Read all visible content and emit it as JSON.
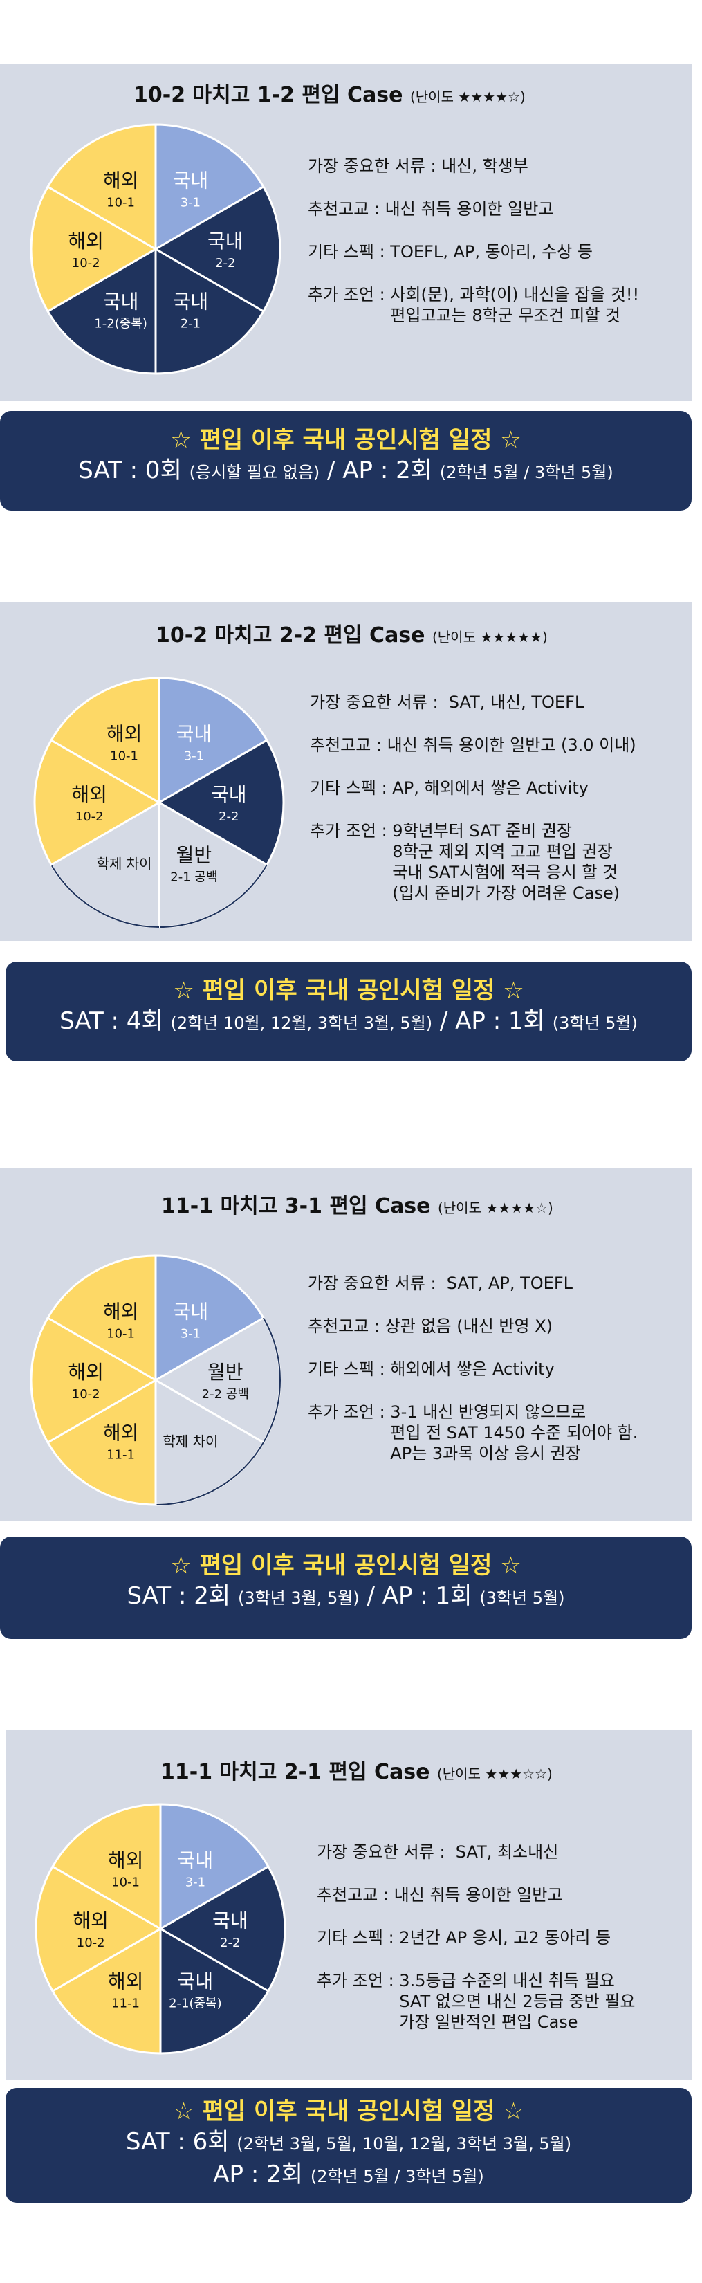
{
  "colors": {
    "panel": "#d5dae5",
    "banner": "#1f335d",
    "banner_title": "#ffe14d",
    "domestic_light": "#8fa8dc",
    "domestic_dark": "#1f335d",
    "overseas": "#fdd866",
    "blank": "#d5dae5"
  },
  "banner_title": "☆ 편입 이후 국내 공인시험 일정 ☆",
  "label_sep": " : ",
  "cases": [
    {
      "title": "10-2 마치고 1-2 편입 Case",
      "difficulty": "(난이도 ★★★★☆)",
      "pie": [
        {
          "title": "국내",
          "sub": "3-1",
          "kind": "domestic_light"
        },
        {
          "title": "국내",
          "sub": "2-2",
          "kind": "domestic_dark"
        },
        {
          "title": "국내",
          "sub": "2-1",
          "kind": "domestic_dark"
        },
        {
          "title": "국내",
          "sub": "1-2(중복)",
          "kind": "domestic_dark"
        },
        {
          "title": "해외",
          "sub": "10-2",
          "kind": "overseas"
        },
        {
          "title": "해외",
          "sub": "10-1",
          "kind": "overseas"
        }
      ],
      "info": [
        {
          "label": "가장 중요한 서류",
          "lines": [
            "내신, 학생부"
          ]
        },
        {
          "label": "추천고교",
          "lines": [
            "내신 취득 용이한 일반고"
          ]
        },
        {
          "label": "기타 스펙",
          "lines": [
            "TOEFL, AP, 동아리, 수상 등"
          ]
        },
        {
          "label": "추가 조언",
          "lines": [
            "사회(문), 과학(이) 내신을 잡을 것!!",
            "편입고교는 8학군 무조건 피할 것"
          ]
        }
      ],
      "banner_lines": [
        [
          {
            "t": "SAT : 0회 ",
            "cls": "big"
          },
          {
            "t": "(응시할 필요 없음)",
            "cls": "sm"
          },
          {
            "t": " / AP : 2회 ",
            "cls": "big"
          },
          {
            "t": "(2학년 5월 / 3학년 5월)",
            "cls": "sm"
          }
        ]
      ]
    },
    {
      "title": "10-2 마치고 2-2 편입 Case",
      "difficulty": "(난이도 ★★★★★)",
      "pie": [
        {
          "title": "국내",
          "sub": "3-1",
          "kind": "domestic_light"
        },
        {
          "title": "국내",
          "sub": "2-2",
          "kind": "domestic_dark"
        },
        {
          "title": "월반",
          "sub": "2-1 공백",
          "kind": "blank"
        },
        {
          "title": "학제 차이",
          "sub": "",
          "kind": "blank"
        },
        {
          "title": "해외",
          "sub": "10-2",
          "kind": "overseas"
        },
        {
          "title": "해외",
          "sub": "10-1",
          "kind": "overseas"
        }
      ],
      "info": [
        {
          "label": "가장 중요한 서류",
          "lines": [
            " SAT, 내신, TOEFL"
          ]
        },
        {
          "label": "추천고교",
          "lines": [
            "내신 취득 용이한 일반고 (3.0 이내)"
          ]
        },
        {
          "label": "기타 스펙",
          "lines": [
            "AP, 해외에서 쌓은 Activity"
          ]
        },
        {
          "label": "추가 조언",
          "lines": [
            "9학년부터 SAT 준비 권장",
            "8학군 제외 지역 고교 편입 권장",
            "국내 SAT시험에 적극 응시 할 것",
            "(입시 준비가 가장 어려운 Case)"
          ]
        }
      ],
      "banner_lines": [
        [
          {
            "t": "SAT : 4회 ",
            "cls": "big"
          },
          {
            "t": "(2학년 10월, 12월, 3학년 3월, 5월)",
            "cls": "sm"
          },
          {
            "t": " / AP : 1회 ",
            "cls": "big"
          },
          {
            "t": "(3학년 5월)",
            "cls": "sm"
          }
        ]
      ]
    },
    {
      "title": "11-1 마치고 3-1 편입 Case",
      "difficulty": "(난이도 ★★★★☆)",
      "pie": [
        {
          "title": "국내",
          "sub": "3-1",
          "kind": "domestic_light"
        },
        {
          "title": "월반",
          "sub": "2-2 공백",
          "kind": "blank"
        },
        {
          "title": "학제 차이",
          "sub": "",
          "kind": "blank"
        },
        {
          "title": "해외",
          "sub": "11-1",
          "kind": "overseas"
        },
        {
          "title": "해외",
          "sub": "10-2",
          "kind": "overseas"
        },
        {
          "title": "해외",
          "sub": "10-1",
          "kind": "overseas"
        }
      ],
      "info": [
        {
          "label": "가장 중요한 서류",
          "lines": [
            " SAT, AP, TOEFL"
          ]
        },
        {
          "label": "추천고교",
          "lines": [
            "상관 없음 (내신 반영 X)"
          ]
        },
        {
          "label": "기타 스펙",
          "lines": [
            "해외에서 쌓은 Activity"
          ]
        },
        {
          "label": "추가 조언",
          "lines": [
            "3-1 내신 반영되지 않으므로",
            "편입 전 SAT 1450 수준 되어야 함.",
            "AP는 3과목 이상 응시 권장"
          ]
        }
      ],
      "banner_lines": [
        [
          {
            "t": "SAT : 2회 ",
            "cls": "big"
          },
          {
            "t": "(3학년 3월, 5월)",
            "cls": "sm"
          },
          {
            "t": " / AP : 1회 ",
            "cls": "big"
          },
          {
            "t": "(3학년 5월)",
            "cls": "sm"
          }
        ]
      ]
    },
    {
      "title": "11-1 마치고 2-1 편입 Case",
      "difficulty": "(난이도 ★★★☆☆)",
      "pie": [
        {
          "title": "국내",
          "sub": "3-1",
          "kind": "domestic_light"
        },
        {
          "title": "국내",
          "sub": "2-2",
          "kind": "domestic_dark"
        },
        {
          "title": "국내",
          "sub": "2-1(중복)",
          "kind": "domestic_dark"
        },
        {
          "title": "해외",
          "sub": "11-1",
          "kind": "overseas"
        },
        {
          "title": "해외",
          "sub": "10-2",
          "kind": "overseas"
        },
        {
          "title": "해외",
          "sub": "10-1",
          "kind": "overseas"
        }
      ],
      "info": [
        {
          "label": "가장 중요한 서류",
          "lines": [
            " SAT, 최소내신"
          ]
        },
        {
          "label": "추천고교",
          "lines": [
            "내신 취득 용이한 일반고"
          ]
        },
        {
          "label": "기타 스펙",
          "lines": [
            "2년간 AP 응시, 고2 동아리 등"
          ]
        },
        {
          "label": "추가 조언",
          "lines": [
            "3.5등급 수준의 내신 취득 필요",
            "SAT 없으면 내신 2등급 중반 필요",
            "가장 일반적인 편입 Case"
          ]
        }
      ],
      "banner_lines": [
        [
          {
            "t": "SAT : 6회 ",
            "cls": "big"
          },
          {
            "t": "(2학년 3월, 5월, 10월, 12월, 3학년 3월, 5월)",
            "cls": "sm"
          }
        ],
        [
          {
            "t": "AP : 2회 ",
            "cls": "big"
          },
          {
            "t": "(2학년 5월 / 3학년 5월)",
            "cls": "sm"
          }
        ]
      ]
    }
  ]
}
